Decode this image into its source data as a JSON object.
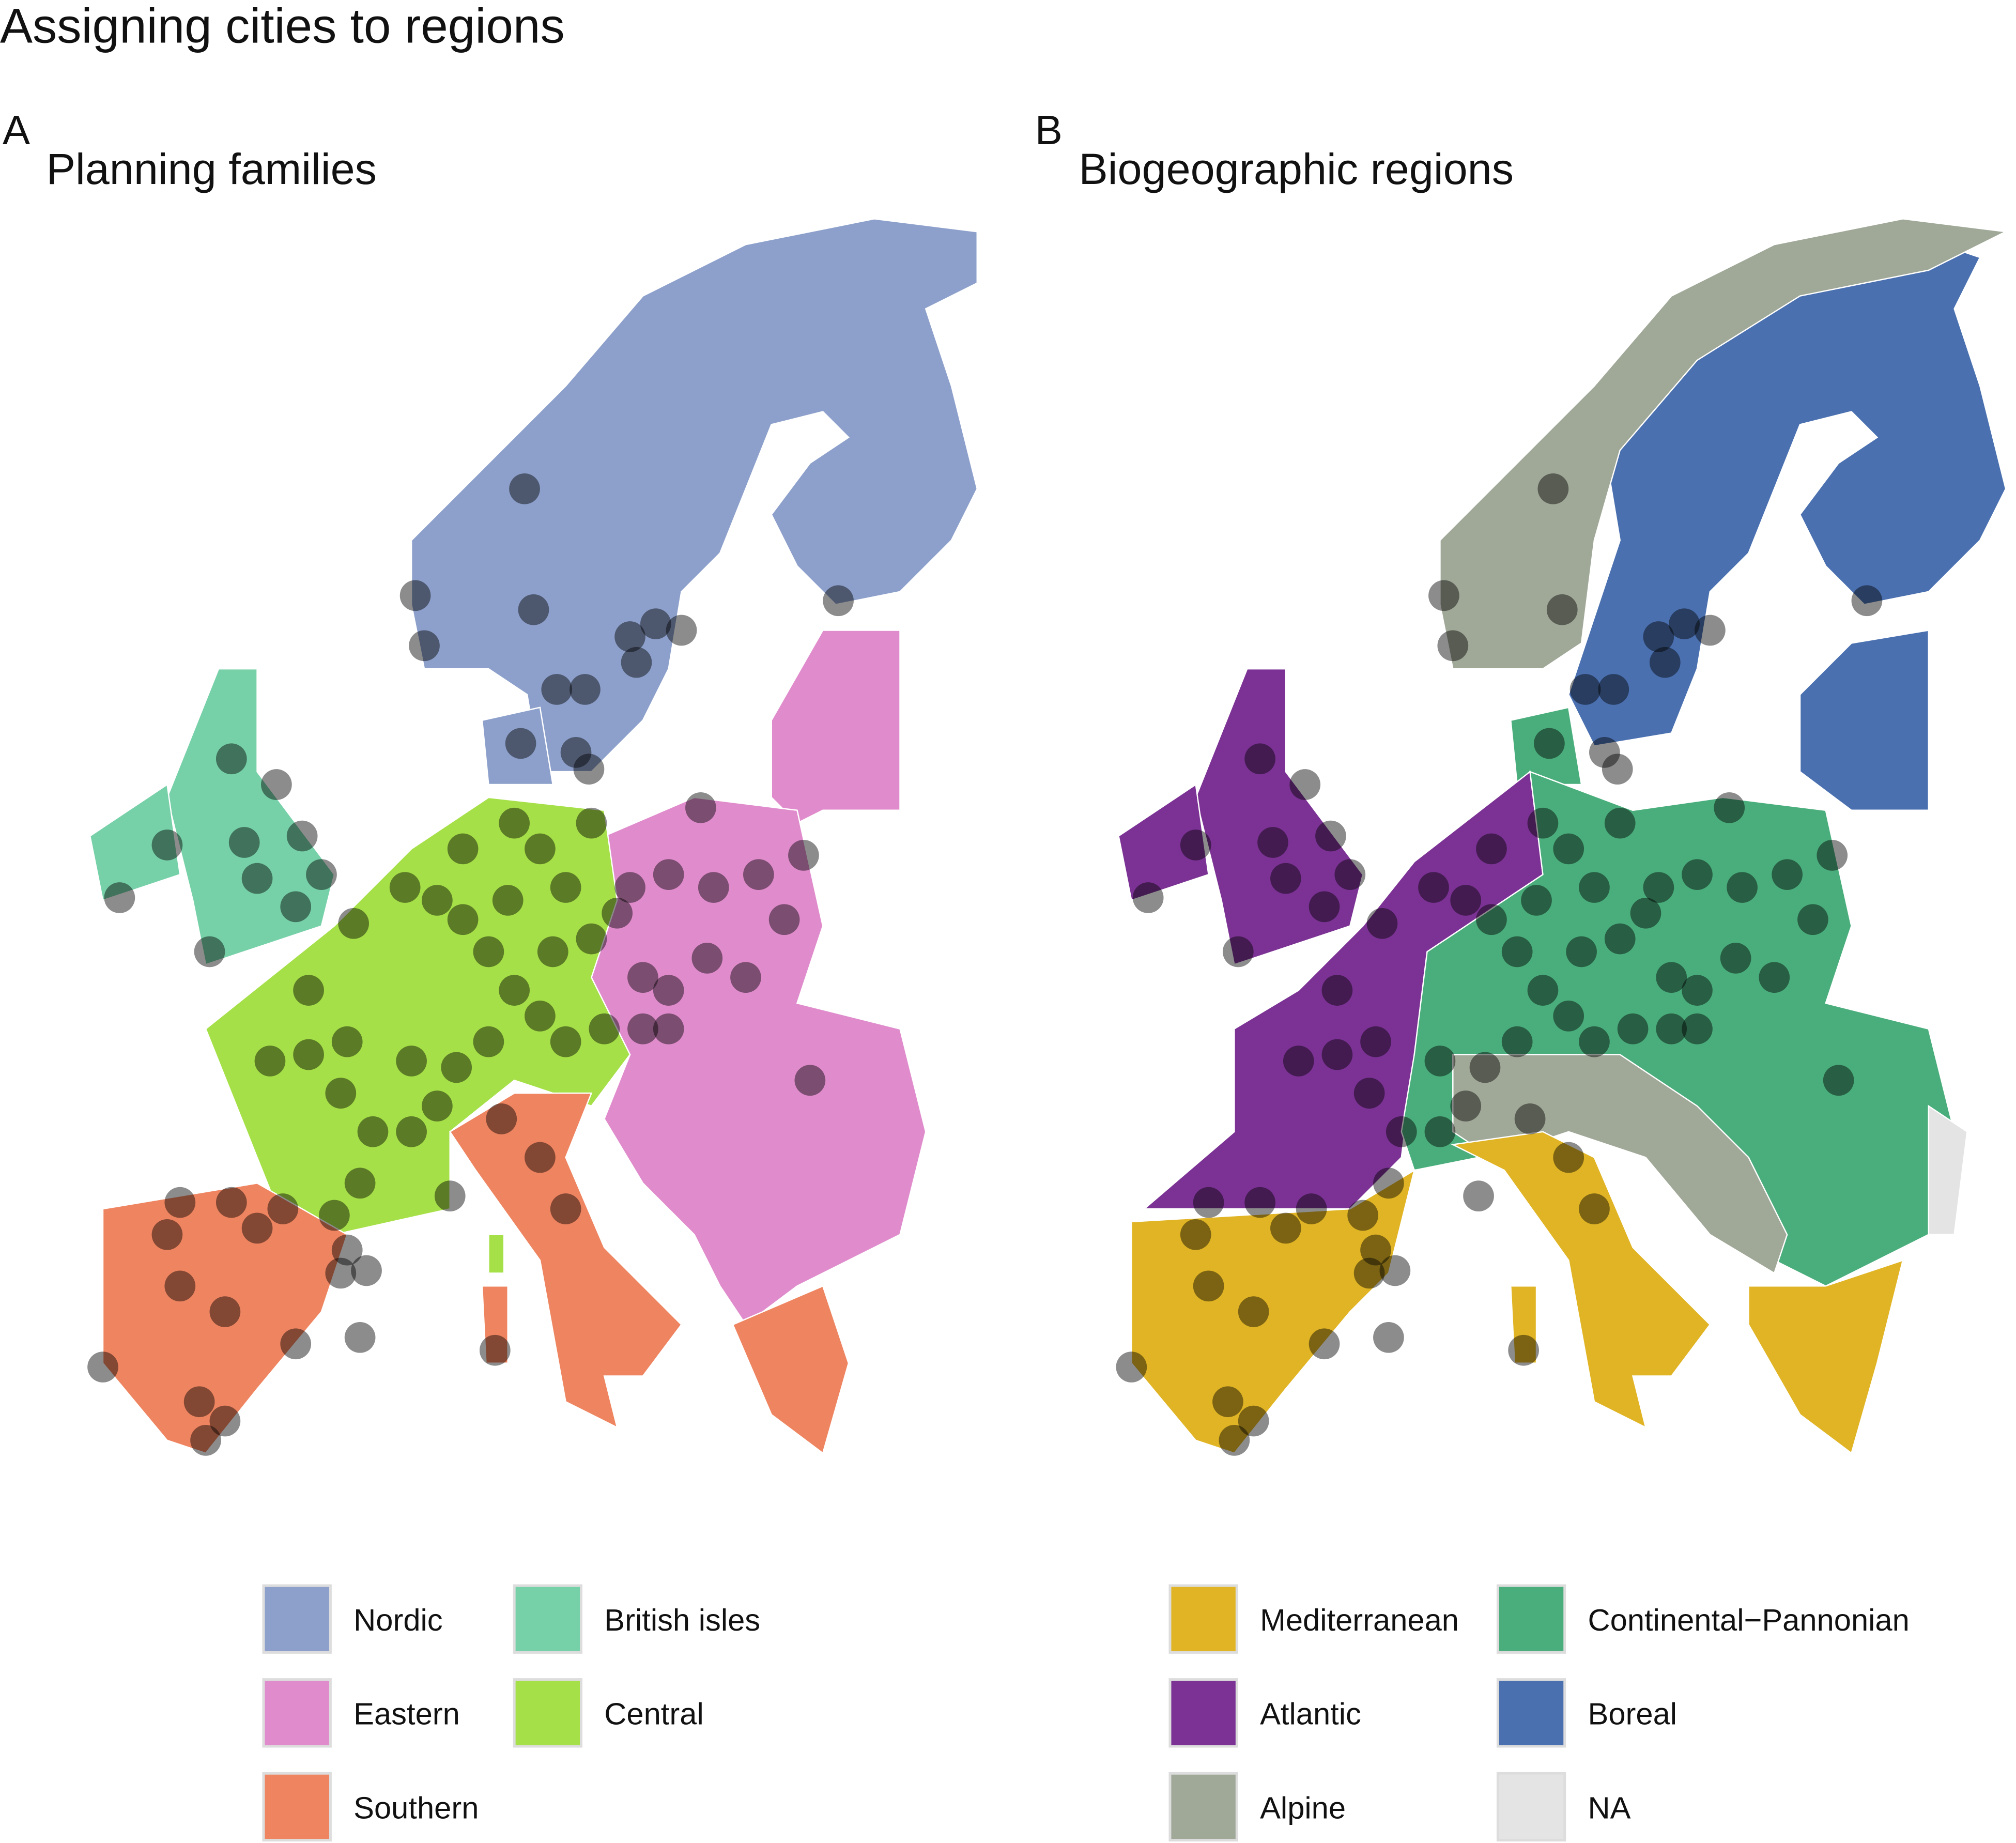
{
  "title": "Assigning cities to regions",
  "panels": [
    {
      "letter": "A",
      "title": "Planning families",
      "legend": [
        {
          "label": "Nordic",
          "color": "#8da0cb"
        },
        {
          "label": "Eastern",
          "color": "#e08ccc"
        },
        {
          "label": "Southern",
          "color": "#ee8460"
        },
        {
          "label": "British isles",
          "color": "#76d0a8"
        },
        {
          "label": "Central",
          "color": "#a6e048"
        }
      ]
    },
    {
      "letter": "B",
      "title": "Biogeographic regions",
      "legend": [
        {
          "label": "Mediterranean",
          "color": "#e0b424"
        },
        {
          "label": "Atlantic",
          "color": "#7b3294"
        },
        {
          "label": "Alpine",
          "color": "#a0a898"
        },
        {
          "label": "Continental−Pannonian",
          "color": "#4aae7c"
        },
        {
          "label": "Boreal",
          "color": "#4a70b0"
        },
        {
          "label": "NA",
          "color": "#e4e4e4"
        }
      ]
    }
  ]
}
